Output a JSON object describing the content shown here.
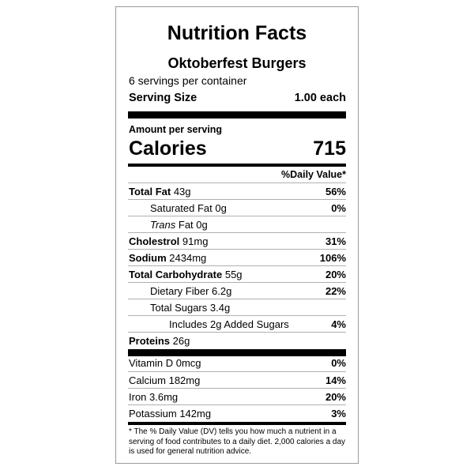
{
  "label": {
    "title": "Nutrition Facts",
    "product": "Oktoberfest Burgers",
    "servings_per_container": "6 servings per container",
    "serving_size_label": "Serving Size",
    "serving_size_value": "1.00 each",
    "amount_per_serving": "Amount per serving",
    "calories_label": "Calories",
    "calories_value": "715",
    "daily_value_header": "%Daily Value*",
    "nutrients": [
      {
        "name": "Total Fat",
        "amount": "43g",
        "pct": "56%"
      },
      {
        "name": "Saturated Fat",
        "amount": "0g",
        "pct": "0%"
      },
      {
        "name": "Trans",
        "amount": "Fat 0g",
        "pct": ""
      },
      {
        "name": "Cholestrol",
        "amount": "91mg",
        "pct": "31%"
      },
      {
        "name": "Sodium",
        "amount": "2434mg",
        "pct": "106%"
      },
      {
        "name": "Total Carbohydrate",
        "amount": "55g",
        "pct": "20%"
      },
      {
        "name": "Dietary Fiber",
        "amount": "6.2g",
        "pct": "22%"
      },
      {
        "name": "Total Sugars",
        "amount": "3.4g",
        "pct": ""
      },
      {
        "name": "Includes 2g Added Sugars",
        "amount": "",
        "pct": "4%"
      },
      {
        "name": "Proteins",
        "amount": "26g",
        "pct": ""
      }
    ],
    "vitamins": [
      {
        "name": "Vitamin D",
        "amount": "0mcg",
        "pct": "0%"
      },
      {
        "name": "Calcium",
        "amount": "182mg",
        "pct": "14%"
      },
      {
        "name": "Iron",
        "amount": "3.6mg",
        "pct": "20%"
      },
      {
        "name": "Potassium",
        "amount": "142mg",
        "pct": "3%"
      }
    ],
    "footnote": "* The % Daily Value (DV) tells you how much a nutrient in a serving of food contributes to a daily diet. 2,000 calories a day is used for general nutrition advice."
  }
}
